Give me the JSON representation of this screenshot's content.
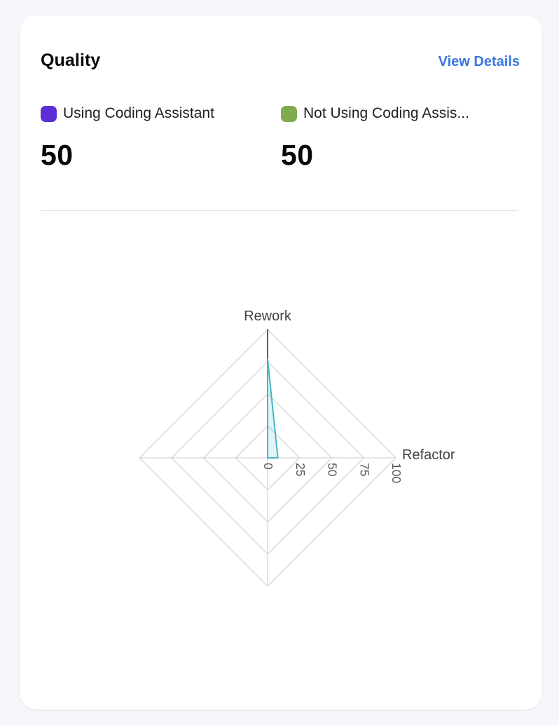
{
  "header": {
    "title": "Quality",
    "action_label": "View Details",
    "action_color": "#3b76e0"
  },
  "summary": [
    {
      "label": "Using Coding Assistant",
      "value": "50",
      "swatch_color": "#5b2ed6"
    },
    {
      "label": "Not Using Coding Assis...",
      "value": "50",
      "swatch_color": "#80aa4e"
    }
  ],
  "chart_data": {
    "type": "radar",
    "axes": [
      "Rework",
      "Refactor",
      "",
      ""
    ],
    "range": [
      0,
      100
    ],
    "rings": 4,
    "radial_ticks": [
      0,
      25,
      50,
      75,
      100
    ],
    "grid": true,
    "grid_color": "#d6d6da",
    "tick_color": "#55555c",
    "label_color": "#3f3f46",
    "series": [
      {
        "name": "Using Coding Assistant",
        "color": "#7b46ad",
        "fill": "none",
        "values": [
          100,
          0,
          0,
          0
        ]
      },
      {
        "name": "Not Using Coding Assistant",
        "color": "#45b7c6",
        "fill": "rgba(69,183,198,0.16)",
        "values": [
          77,
          8,
          0,
          0
        ]
      }
    ]
  }
}
